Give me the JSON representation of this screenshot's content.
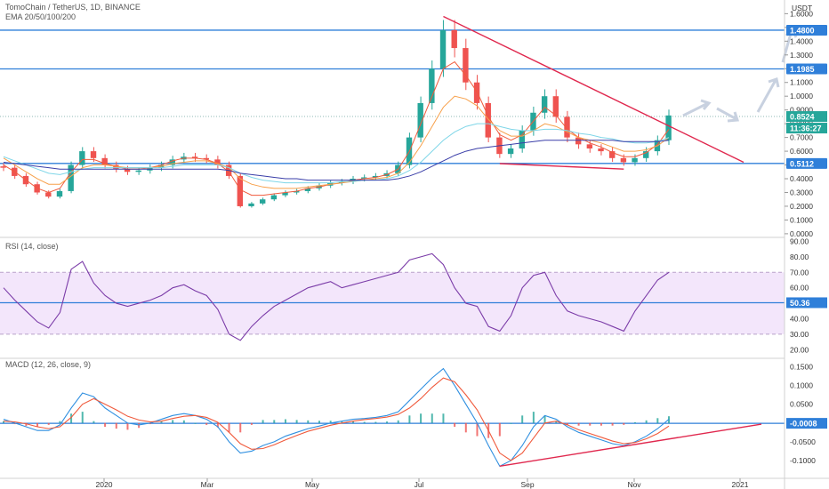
{
  "header": {
    "symbol_line": "TomoChain / TetherUS, 1D, BINANCE",
    "indicator_line": "EMA 20/50/100/200",
    "currency": "USDT"
  },
  "panes": {
    "rsi_label": "RSI (14, close)",
    "macd_label": "MACD (12, 26, close, 9)"
  },
  "colors": {
    "candle_up": "#26a69a",
    "candle_down": "#ef5350",
    "ema20": "#f05a3c",
    "ema50": "#f7a04a",
    "ema100": "#7fd6e8",
    "ema200": "#3a3ea8",
    "hline": "#2f7fd9",
    "trendline": "#e0284e",
    "rsi_line": "#7b3ca8",
    "rsi_band": "#f3e6fb",
    "macd_line": "#2f8fe0",
    "signal_line": "#f05a3c",
    "badge": "#2f7fd9",
    "price_badge": "#26a69a"
  },
  "chart_data": [
    {
      "type": "candlestick",
      "title": "TomoChain / TetherUS, 1D, BINANCE",
      "ylim": [
        -0.02,
        1.68
      ],
      "yticks": [
        "1.6000",
        "1.5000",
        "1.4000",
        "1.3000",
        "1.2000",
        "1.1000",
        "1.0000",
        "0.9000",
        "0.8000",
        "0.7000",
        "0.6000",
        "0.5000",
        "0.4000",
        "0.3000",
        "0.2000",
        "0.1000",
        "0.0000"
      ],
      "xticks": [
        "2020",
        "Mar",
        "May",
        "Jul",
        "Sep",
        "Nov",
        "2021"
      ],
      "horizontal_levels": [
        {
          "label": "1.4800",
          "value": 1.48
        },
        {
          "label": "1.1985",
          "value": 1.1985
        },
        {
          "label": "0.5112",
          "value": 0.5112
        }
      ],
      "last_price": {
        "label": "0.8524",
        "value": 0.8524,
        "countdown": "11:36:27"
      },
      "series_price": [
        0.48,
        0.42,
        0.36,
        0.3,
        0.27,
        0.31,
        0.5,
        0.6,
        0.55,
        0.5,
        0.47,
        0.45,
        0.46,
        0.48,
        0.5,
        0.54,
        0.56,
        0.55,
        0.54,
        0.5,
        0.42,
        0.2,
        0.22,
        0.25,
        0.28,
        0.3,
        0.31,
        0.33,
        0.35,
        0.37,
        0.38,
        0.4,
        0.41,
        0.42,
        0.44,
        0.5,
        0.7,
        0.95,
        1.2,
        1.48,
        1.35,
        1.1,
        0.95,
        0.7,
        0.58,
        0.62,
        0.75,
        0.88,
        1.0,
        0.85,
        0.7,
        0.65,
        0.62,
        0.6,
        0.55,
        0.52,
        0.55,
        0.6,
        0.68,
        0.86
      ],
      "ema_series": [
        {
          "name": "EMA 20",
          "values": [
            0.5,
            0.45,
            0.39,
            0.33,
            0.3,
            0.33,
            0.45,
            0.54,
            0.54,
            0.51,
            0.49,
            0.47,
            0.47,
            0.48,
            0.5,
            0.53,
            0.55,
            0.55,
            0.54,
            0.51,
            0.45,
            0.32,
            0.28,
            0.28,
            0.29,
            0.3,
            0.31,
            0.33,
            0.34,
            0.36,
            0.37,
            0.39,
            0.4,
            0.41,
            0.43,
            0.47,
            0.6,
            0.8,
            1.0,
            1.2,
            1.25,
            1.15,
            1.03,
            0.85,
            0.72,
            0.68,
            0.72,
            0.82,
            0.92,
            0.86,
            0.76,
            0.7,
            0.66,
            0.63,
            0.59,
            0.56,
            0.56,
            0.59,
            0.65,
            0.76
          ]
        },
        {
          "name": "EMA 50",
          "values": [
            0.55,
            0.5,
            0.45,
            0.4,
            0.36,
            0.36,
            0.42,
            0.48,
            0.5,
            0.5,
            0.49,
            0.48,
            0.48,
            0.48,
            0.49,
            0.51,
            0.52,
            0.53,
            0.53,
            0.51,
            0.48,
            0.4,
            0.36,
            0.34,
            0.33,
            0.33,
            0.33,
            0.34,
            0.35,
            0.36,
            0.37,
            0.38,
            0.39,
            0.4,
            0.41,
            0.44,
            0.52,
            0.64,
            0.78,
            0.92,
            1.0,
            0.98,
            0.93,
            0.83,
            0.75,
            0.71,
            0.71,
            0.75,
            0.8,
            0.78,
            0.74,
            0.7,
            0.68,
            0.66,
            0.63,
            0.6,
            0.6,
            0.61,
            0.64,
            0.7
          ]
        },
        {
          "name": "EMA 100",
          "values": [
            0.56,
            0.53,
            0.5,
            0.47,
            0.44,
            0.43,
            0.45,
            0.47,
            0.48,
            0.48,
            0.48,
            0.48,
            0.48,
            0.48,
            0.48,
            0.49,
            0.5,
            0.5,
            0.5,
            0.5,
            0.48,
            0.44,
            0.41,
            0.39,
            0.38,
            0.37,
            0.37,
            0.37,
            0.37,
            0.37,
            0.38,
            0.38,
            0.39,
            0.39,
            0.4,
            0.42,
            0.46,
            0.52,
            0.6,
            0.68,
            0.74,
            0.78,
            0.8,
            0.8,
            0.78,
            0.76,
            0.75,
            0.75,
            0.76,
            0.76,
            0.75,
            0.73,
            0.72,
            0.7,
            0.69,
            0.67,
            0.66,
            0.66,
            0.67,
            0.7
          ]
        },
        {
          "name": "EMA 200",
          "values": [
            0.52,
            0.51,
            0.5,
            0.49,
            0.48,
            0.47,
            0.47,
            0.47,
            0.47,
            0.47,
            0.47,
            0.47,
            0.47,
            0.47,
            0.47,
            0.47,
            0.47,
            0.47,
            0.47,
            0.47,
            0.46,
            0.44,
            0.43,
            0.42,
            0.41,
            0.4,
            0.4,
            0.39,
            0.39,
            0.39,
            0.39,
            0.39,
            0.39,
            0.39,
            0.39,
            0.4,
            0.42,
            0.45,
            0.49,
            0.53,
            0.57,
            0.6,
            0.62,
            0.63,
            0.64,
            0.65,
            0.66,
            0.67,
            0.68,
            0.68,
            0.68,
            0.68,
            0.68,
            0.68,
            0.68,
            0.67,
            0.67,
            0.67,
            0.67,
            0.68
          ]
        }
      ]
    },
    {
      "type": "line",
      "title": "RSI (14, close)",
      "ylim": [
        15,
        92
      ],
      "yticks": [
        "90.00",
        "80.00",
        "70.00",
        "60.00",
        "50.00",
        "40.00",
        "30.00",
        "20.00"
      ],
      "band": [
        30,
        70
      ],
      "level": {
        "label": "50.36",
        "value": 50.36
      },
      "values": [
        60,
        52,
        45,
        38,
        34,
        44,
        72,
        77,
        63,
        55,
        50,
        48,
        50,
        52,
        55,
        60,
        62,
        58,
        55,
        46,
        30,
        26,
        35,
        42,
        48,
        52,
        56,
        60,
        62,
        64,
        60,
        62,
        64,
        66,
        68,
        70,
        78,
        80,
        82,
        75,
        60,
        50,
        48,
        35,
        32,
        42,
        60,
        68,
        70,
        55,
        45,
        42,
        40,
        38,
        35,
        32,
        45,
        55,
        65,
        70
      ]
    },
    {
      "type": "line",
      "title": "MACD (12, 26, close, 9)",
      "ylim": [
        -0.145,
        0.17
      ],
      "yticks": [
        "0.1500",
        "0.1000",
        "0.0500",
        "0.0000",
        "-0.0500",
        "-0.1000"
      ],
      "level": {
        "label": "-0.0008",
        "value": -0.0008
      },
      "series": [
        {
          "name": "MACD",
          "values": [
            0.01,
            0.0,
            -0.01,
            -0.02,
            -0.02,
            -0.005,
            0.04,
            0.08,
            0.07,
            0.04,
            0.02,
            0.0,
            -0.005,
            0.0,
            0.01,
            0.02,
            0.025,
            0.02,
            0.01,
            -0.01,
            -0.05,
            -0.08,
            -0.075,
            -0.06,
            -0.05,
            -0.035,
            -0.025,
            -0.015,
            -0.008,
            0.0,
            0.005,
            0.01,
            0.012,
            0.015,
            0.02,
            0.03,
            0.06,
            0.09,
            0.12,
            0.145,
            0.1,
            0.05,
            0.0,
            -0.06,
            -0.115,
            -0.1,
            -0.06,
            -0.01,
            0.02,
            0.01,
            -0.01,
            -0.025,
            -0.035,
            -0.045,
            -0.055,
            -0.06,
            -0.05,
            -0.035,
            -0.015,
            0.01
          ]
        },
        {
          "name": "Signal",
          "values": [
            0.005,
            0.003,
            -0.002,
            -0.01,
            -0.015,
            -0.01,
            0.015,
            0.05,
            0.065,
            0.05,
            0.035,
            0.018,
            0.008,
            0.003,
            0.005,
            0.012,
            0.018,
            0.02,
            0.015,
            0.002,
            -0.025,
            -0.055,
            -0.07,
            -0.068,
            -0.058,
            -0.045,
            -0.033,
            -0.022,
            -0.014,
            -0.006,
            0.0,
            0.005,
            0.009,
            0.012,
            0.016,
            0.023,
            0.04,
            0.065,
            0.095,
            0.12,
            0.11,
            0.075,
            0.035,
            -0.02,
            -0.08,
            -0.1,
            -0.08,
            -0.04,
            0.0,
            0.005,
            -0.005,
            -0.018,
            -0.028,
            -0.038,
            -0.048,
            -0.055,
            -0.052,
            -0.042,
            -0.028,
            -0.008
          ]
        }
      ]
    }
  ]
}
